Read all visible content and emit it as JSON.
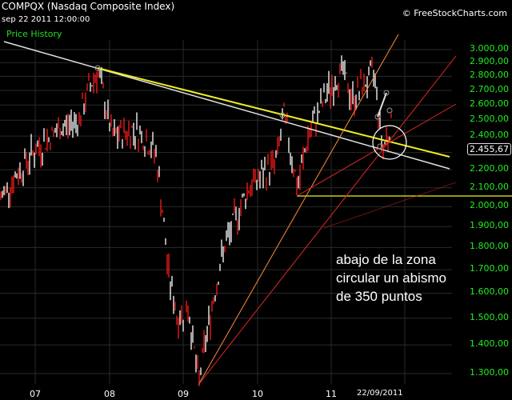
{
  "header": {
    "title": "COMPQX (Nasdaq Composite Index)",
    "datetime": "sep 22 2011 12:00:00",
    "series_label": "Price History",
    "copyright": "© FreeStockCharts.com"
  },
  "current_price_label": "2.455,67",
  "annotation": {
    "lines": [
      "abajo de la zona",
      "circular un abismo",
      "de 350 puntos"
    ]
  },
  "colors": {
    "background": "#000000",
    "axis_text": "#22ee22",
    "up_bar": "#ffffff",
    "down_bar": "#ff1a1a",
    "grid": "#2a2a2a",
    "trend_white": "#e0e0e0",
    "trend_yellow": "#eeee22",
    "fan_orange": "#ff8c3a",
    "fan_red": "#e02828",
    "support_yellow": "#eeee22"
  },
  "chart_data": {
    "type": "line",
    "title": "COMPQX (Nasdaq Composite Index)",
    "subtitle": "Price History",
    "xlabel": "",
    "ylabel": "",
    "x_tick_labels": [
      "07",
      "08",
      "09",
      "10",
      "11",
      "22/09/2011"
    ],
    "y_tick_labels": [
      "3.000,00",
      "2.900,00",
      "2.800,00",
      "2.700,00",
      "2.600,00",
      "2.500,00",
      "2.400,00",
      "2.300,00",
      "2.200,00",
      "2.100,00",
      "2.000,00",
      "1.900,00",
      "1.800,00",
      "1.700,00",
      "1.600,00",
      "1.500,00",
      "1.400,00",
      "1.300,00"
    ],
    "ylim": [
      1260,
      3030
    ],
    "scale": "log",
    "grid": true,
    "legend_position": "top-left",
    "last_price": 2455.67,
    "x": [
      "2006-07",
      "2006-10",
      "2007-01",
      "2007-04",
      "2007-07",
      "2007-10",
      "2008-01",
      "2008-04",
      "2008-07",
      "2008-10",
      "2008-11",
      "2009-01",
      "2009-03",
      "2009-06",
      "2009-09",
      "2009-12",
      "2010-04",
      "2010-07",
      "2010-10",
      "2011-01",
      "2011-04",
      "2011-06",
      "2011-07",
      "2011-08",
      "2011-09"
    ],
    "series": [
      {
        "name": "Price History",
        "values": [
          2040,
          2300,
          2450,
          2520,
          2700,
          2850,
          2400,
          2450,
          2300,
          1700,
          1500,
          1550,
          1270,
          1800,
          2100,
          2250,
          2530,
          2100,
          2400,
          2700,
          2850,
          2650,
          2830,
          2330,
          2455
        ]
      }
    ],
    "annotations": [
      {
        "type": "trendline",
        "color": "white",
        "from": [
          "2006-05",
          3010
        ],
        "to": [
          "2011-12",
          2200
        ]
      },
      {
        "type": "trendline",
        "color": "yellow",
        "from": [
          "2007-10",
          2850
        ],
        "to": [
          "2011-12",
          2270
        ]
      },
      {
        "type": "horizontal",
        "color": "yellow",
        "value": 2060,
        "from": "2010-07"
      },
      {
        "type": "fan",
        "color": "orange/red",
        "origin": [
          "2009-03",
          1270
        ]
      },
      {
        "type": "circle",
        "center": [
          "2011-08",
          2340
        ]
      },
      {
        "type": "text",
        "text": "abajo de la zona circular un abismo de 350 puntos"
      }
    ]
  }
}
